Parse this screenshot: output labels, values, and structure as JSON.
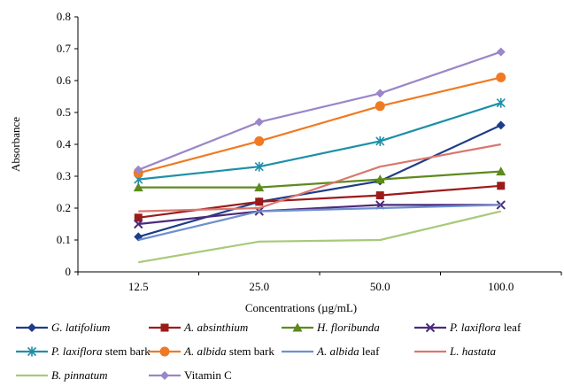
{
  "chart_data": {
    "type": "line",
    "xlabel": "Concentrations (µg/mL)",
    "ylabel": "Absorbance",
    "categories": [
      "12.5",
      "25.0",
      "50.0",
      "100.0"
    ],
    "ylim": [
      0,
      0.8
    ],
    "yticks": [
      "0",
      "0.1",
      "0.2",
      "0.3",
      "0.4",
      "0.5",
      "0.6",
      "0.7",
      "0.8"
    ],
    "grid": false,
    "legend_position": "bottom",
    "series": [
      {
        "name": "G. latifolium",
        "species": "G. latifolium",
        "rest": "",
        "color": "#1F3C88",
        "marker": "diamond",
        "values": [
          0.11,
          0.22,
          0.285,
          0.46
        ]
      },
      {
        "name": "A. absinthium",
        "species": "A. absinthium",
        "rest": "",
        "color": "#9B1B1B",
        "marker": "square",
        "values": [
          0.17,
          0.22,
          0.24,
          0.27
        ]
      },
      {
        "name": "H. floribunda",
        "species": "H. floribunda",
        "rest": "",
        "color": "#5E8A1E",
        "marker": "triangle",
        "values": [
          0.265,
          0.265,
          0.29,
          0.315
        ]
      },
      {
        "name": "P. laxiflora leaf",
        "species": "P. laxiflora",
        "rest": " leaf",
        "color": "#4B2A7B",
        "marker": "x",
        "values": [
          0.15,
          0.19,
          0.21,
          0.21
        ]
      },
      {
        "name": "P. laxiflora stem bark",
        "species": "P. laxiflora",
        "rest": " stem bark",
        "color": "#1E8FA8",
        "marker": "star",
        "values": [
          0.29,
          0.33,
          0.41,
          0.53
        ]
      },
      {
        "name": "A. albida stem bark",
        "species": "A. albida",
        "rest": " stem bark",
        "color": "#F07A22",
        "marker": "circle",
        "values": [
          0.31,
          0.41,
          0.52,
          0.61
        ]
      },
      {
        "name": "A. albida leaf",
        "species": "A. albida",
        "rest": " leaf",
        "color": "#6F8FD0",
        "marker": "none",
        "values": [
          0.1,
          0.19,
          0.2,
          0.21
        ]
      },
      {
        "name": "L. hastata",
        "species": "L. hastata",
        "rest": "",
        "color": "#D9776F",
        "marker": "none",
        "values": [
          0.19,
          0.2,
          0.33,
          0.4
        ]
      },
      {
        "name": "B. pinnatum",
        "species": "B. pinnatum",
        "rest": "",
        "color": "#A8C97A",
        "marker": "none",
        "values": [
          0.03,
          0.095,
          0.1,
          0.19
        ]
      },
      {
        "name": "Vitamin C",
        "species": "",
        "rest": "Vitamin C",
        "color": "#9A86C8",
        "marker": "diamond",
        "values": [
          0.32,
          0.47,
          0.56,
          0.69
        ]
      }
    ]
  }
}
